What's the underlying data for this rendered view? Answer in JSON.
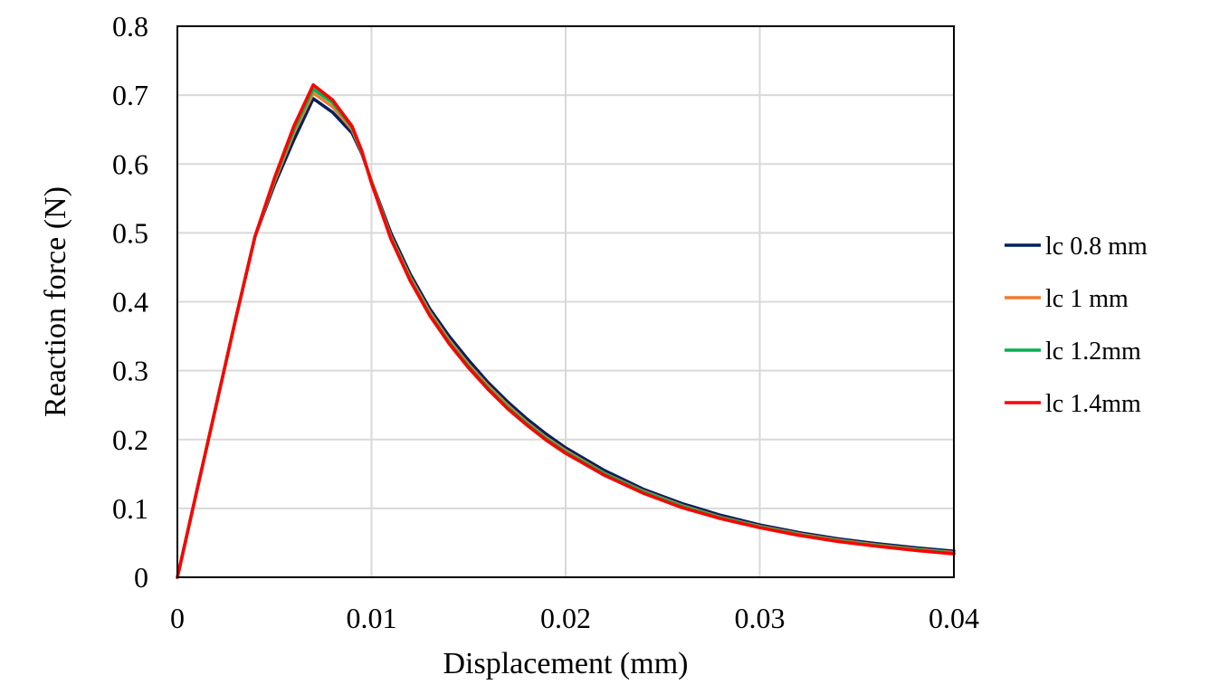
{
  "chart_data": {
    "type": "line",
    "title": "",
    "xlabel": "Displacement (mm)",
    "ylabel": "Reaction force (N)",
    "xlim": [
      0,
      0.04
    ],
    "ylim": [
      0,
      0.8
    ],
    "x_ticks": [
      "0",
      "0.01",
      "0.02",
      "0.03",
      "0.04"
    ],
    "y_ticks": [
      "0",
      "0.1",
      "0.2",
      "0.3",
      "0.4",
      "0.5",
      "0.6",
      "0.7",
      "0.8"
    ],
    "grid": true,
    "legend_position": "right",
    "series": [
      {
        "name": "lc 0.8 mm",
        "color": "#002060",
        "x": [
          0,
          0.001,
          0.002,
          0.003,
          0.004,
          0.005,
          0.006,
          0.007,
          0.008,
          0.009,
          0.0095,
          0.01,
          0.011,
          0.012,
          0.013,
          0.014,
          0.015,
          0.016,
          0.017,
          0.018,
          0.019,
          0.02,
          0.022,
          0.024,
          0.026,
          0.028,
          0.03,
          0.032,
          0.034,
          0.036,
          0.038,
          0.04
        ],
        "y": [
          0,
          0.125,
          0.25,
          0.375,
          0.495,
          0.57,
          0.635,
          0.695,
          0.675,
          0.645,
          0.615,
          0.575,
          0.5,
          0.44,
          0.39,
          0.35,
          0.315,
          0.283,
          0.255,
          0.23,
          0.208,
          0.188,
          0.155,
          0.128,
          0.107,
          0.09,
          0.076,
          0.065,
          0.056,
          0.049,
          0.043,
          0.038
        ]
      },
      {
        "name": "lc 1 mm",
        "color": "#ED7D31",
        "x": [
          0,
          0.001,
          0.002,
          0.003,
          0.004,
          0.005,
          0.006,
          0.007,
          0.008,
          0.009,
          0.0095,
          0.01,
          0.011,
          0.012,
          0.013,
          0.014,
          0.015,
          0.016,
          0.017,
          0.018,
          0.019,
          0.02,
          0.022,
          0.024,
          0.026,
          0.028,
          0.03,
          0.032,
          0.034,
          0.036,
          0.038,
          0.04
        ],
        "y": [
          0,
          0.125,
          0.25,
          0.375,
          0.495,
          0.575,
          0.645,
          0.703,
          0.683,
          0.65,
          0.617,
          0.574,
          0.495,
          0.435,
          0.385,
          0.344,
          0.309,
          0.278,
          0.25,
          0.225,
          0.203,
          0.184,
          0.151,
          0.125,
          0.104,
          0.087,
          0.074,
          0.063,
          0.054,
          0.047,
          0.041,
          0.036
        ]
      },
      {
        "name": "lc 1.2mm",
        "color": "#00B050",
        "x": [
          0,
          0.001,
          0.002,
          0.003,
          0.004,
          0.005,
          0.006,
          0.007,
          0.008,
          0.009,
          0.0095,
          0.01,
          0.011,
          0.012,
          0.013,
          0.014,
          0.015,
          0.016,
          0.017,
          0.018,
          0.019,
          0.02,
          0.022,
          0.024,
          0.026,
          0.028,
          0.03,
          0.032,
          0.034,
          0.036,
          0.038,
          0.04
        ],
        "y": [
          0,
          0.125,
          0.25,
          0.375,
          0.495,
          0.578,
          0.65,
          0.709,
          0.689,
          0.653,
          0.618,
          0.573,
          0.493,
          0.432,
          0.382,
          0.341,
          0.306,
          0.275,
          0.247,
          0.223,
          0.201,
          0.182,
          0.15,
          0.124,
          0.103,
          0.086,
          0.073,
          0.062,
          0.053,
          0.046,
          0.04,
          0.035
        ]
      },
      {
        "name": "lc 1.4mm",
        "color": "#FF0000",
        "x": [
          0,
          0.001,
          0.002,
          0.003,
          0.004,
          0.005,
          0.006,
          0.007,
          0.008,
          0.009,
          0.0095,
          0.01,
          0.011,
          0.012,
          0.013,
          0.014,
          0.015,
          0.016,
          0.017,
          0.018,
          0.019,
          0.02,
          0.022,
          0.024,
          0.026,
          0.028,
          0.03,
          0.032,
          0.034,
          0.036,
          0.038,
          0.04
        ],
        "y": [
          0,
          0.125,
          0.25,
          0.375,
          0.495,
          0.58,
          0.655,
          0.715,
          0.693,
          0.655,
          0.619,
          0.572,
          0.491,
          0.43,
          0.38,
          0.339,
          0.304,
          0.273,
          0.245,
          0.221,
          0.199,
          0.18,
          0.148,
          0.122,
          0.101,
          0.085,
          0.072,
          0.061,
          0.052,
          0.045,
          0.039,
          0.034
        ]
      }
    ]
  }
}
